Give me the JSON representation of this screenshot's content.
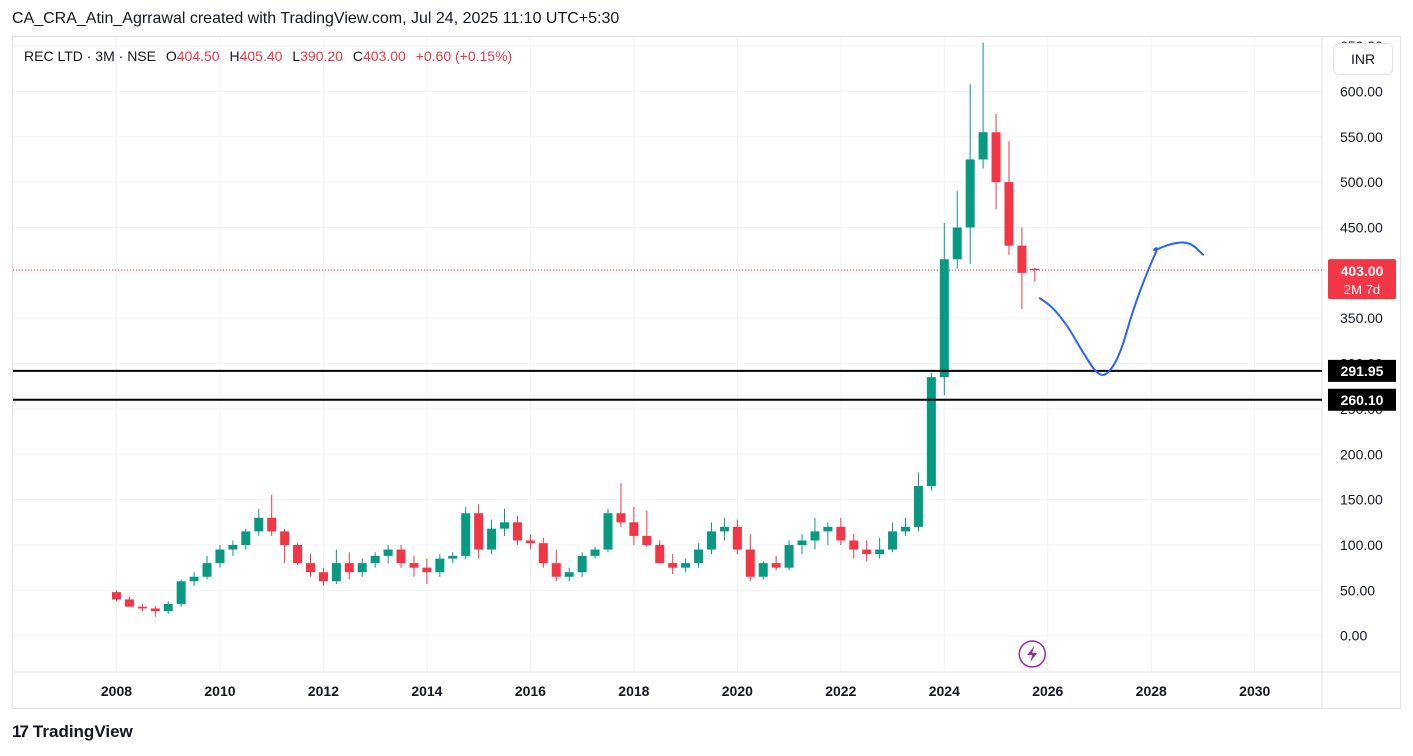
{
  "caption": "CA_CRA_Atin_Agrrawal created with TradingView.com, Jul 24, 2025 11:10 UTC+5:30",
  "legend": {
    "symbol": "REC LTD · 3M · NSE",
    "o_label": "O",
    "o": "404.50",
    "h_label": "H",
    "h": "405.40",
    "l_label": "L",
    "l": "390.20",
    "c_label": "C",
    "c": "403.00",
    "change": "+0.60 (+0.15%)"
  },
  "currency": "INR",
  "price_badge": {
    "price": "403.00",
    "countdown": "2M 7d"
  },
  "footer": {
    "brand": "TradingView",
    "logo_mark": "17"
  },
  "colors": {
    "up": "#089981",
    "down": "#f23645",
    "drawing": "#2962ff",
    "event": "#9c27b0"
  },
  "chart_data": {
    "type": "candlestick",
    "interval": "3M",
    "y_axis": {
      "ticks": [
        "0.00",
        "50.00",
        "100.00",
        "150.00",
        "200.00",
        "250.00",
        "300.00",
        "350.00",
        "400.00",
        "450.00",
        "500.00",
        "550.00",
        "600.00",
        "650.00"
      ],
      "ylim": [
        -40,
        660
      ]
    },
    "x_axis": {
      "ticks": [
        "2008",
        "2010",
        "2012",
        "2014",
        "2016",
        "2018",
        "2020",
        "2022",
        "2024",
        "2026",
        "2028",
        "2030"
      ],
      "xlim": [
        2006.0,
        2031.3
      ]
    },
    "horizontal_lines": [
      {
        "value": 291.95,
        "label": "291.95"
      },
      {
        "value": 260.1,
        "label": "260.10"
      }
    ],
    "current_price": 403.0,
    "candles": [
      {
        "t": 2008.0,
        "o": 48,
        "h": 50,
        "l": 38,
        "c": 40
      },
      {
        "t": 2008.25,
        "o": 40,
        "h": 43,
        "l": 32,
        "c": 32
      },
      {
        "t": 2008.5,
        "o": 32,
        "h": 35,
        "l": 27,
        "c": 30
      },
      {
        "t": 2008.75,
        "o": 30,
        "h": 33,
        "l": 21,
        "c": 27
      },
      {
        "t": 2009.0,
        "o": 27,
        "h": 38,
        "l": 24,
        "c": 35
      },
      {
        "t": 2009.25,
        "o": 35,
        "h": 62,
        "l": 32,
        "c": 60
      },
      {
        "t": 2009.5,
        "o": 60,
        "h": 70,
        "l": 55,
        "c": 65
      },
      {
        "t": 2009.75,
        "o": 65,
        "h": 88,
        "l": 62,
        "c": 80
      },
      {
        "t": 2010.0,
        "o": 80,
        "h": 100,
        "l": 75,
        "c": 95
      },
      {
        "t": 2010.25,
        "o": 95,
        "h": 105,
        "l": 88,
        "c": 100
      },
      {
        "t": 2010.5,
        "o": 100,
        "h": 118,
        "l": 95,
        "c": 115
      },
      {
        "t": 2010.75,
        "o": 115,
        "h": 140,
        "l": 110,
        "c": 130
      },
      {
        "t": 2011.0,
        "o": 130,
        "h": 155,
        "l": 110,
        "c": 115
      },
      {
        "t": 2011.25,
        "o": 115,
        "h": 118,
        "l": 80,
        "c": 100
      },
      {
        "t": 2011.5,
        "o": 100,
        "h": 102,
        "l": 78,
        "c": 80
      },
      {
        "t": 2011.75,
        "o": 80,
        "h": 90,
        "l": 65,
        "c": 70
      },
      {
        "t": 2012.0,
        "o": 70,
        "h": 75,
        "l": 55,
        "c": 60
      },
      {
        "t": 2012.25,
        "o": 60,
        "h": 95,
        "l": 57,
        "c": 80
      },
      {
        "t": 2012.5,
        "o": 80,
        "h": 92,
        "l": 62,
        "c": 70
      },
      {
        "t": 2012.75,
        "o": 70,
        "h": 85,
        "l": 65,
        "c": 80
      },
      {
        "t": 2013.0,
        "o": 80,
        "h": 92,
        "l": 75,
        "c": 88
      },
      {
        "t": 2013.25,
        "o": 88,
        "h": 100,
        "l": 80,
        "c": 95
      },
      {
        "t": 2013.5,
        "o": 95,
        "h": 100,
        "l": 75,
        "c": 80
      },
      {
        "t": 2013.75,
        "o": 80,
        "h": 88,
        "l": 65,
        "c": 75
      },
      {
        "t": 2014.0,
        "o": 75,
        "h": 85,
        "l": 57,
        "c": 70
      },
      {
        "t": 2014.25,
        "o": 70,
        "h": 90,
        "l": 65,
        "c": 85
      },
      {
        "t": 2014.5,
        "o": 85,
        "h": 92,
        "l": 80,
        "c": 88
      },
      {
        "t": 2014.75,
        "o": 88,
        "h": 142,
        "l": 84,
        "c": 135
      },
      {
        "t": 2015.0,
        "o": 135,
        "h": 145,
        "l": 85,
        "c": 95
      },
      {
        "t": 2015.25,
        "o": 95,
        "h": 128,
        "l": 90,
        "c": 118
      },
      {
        "t": 2015.5,
        "o": 118,
        "h": 140,
        "l": 110,
        "c": 125
      },
      {
        "t": 2015.75,
        "o": 125,
        "h": 132,
        "l": 100,
        "c": 105
      },
      {
        "t": 2016.0,
        "o": 105,
        "h": 112,
        "l": 95,
        "c": 102
      },
      {
        "t": 2016.25,
        "o": 102,
        "h": 108,
        "l": 75,
        "c": 80
      },
      {
        "t": 2016.5,
        "o": 80,
        "h": 95,
        "l": 60,
        "c": 65
      },
      {
        "t": 2016.75,
        "o": 65,
        "h": 75,
        "l": 60,
        "c": 70
      },
      {
        "t": 2017.0,
        "o": 70,
        "h": 92,
        "l": 65,
        "c": 88
      },
      {
        "t": 2017.25,
        "o": 88,
        "h": 98,
        "l": 85,
        "c": 95
      },
      {
        "t": 2017.5,
        "o": 95,
        "h": 140,
        "l": 92,
        "c": 135
      },
      {
        "t": 2017.75,
        "o": 135,
        "h": 168,
        "l": 120,
        "c": 125
      },
      {
        "t": 2018.0,
        "o": 125,
        "h": 142,
        "l": 100,
        "c": 110
      },
      {
        "t": 2018.25,
        "o": 110,
        "h": 138,
        "l": 98,
        "c": 100
      },
      {
        "t": 2018.5,
        "o": 100,
        "h": 105,
        "l": 80,
        "c": 80
      },
      {
        "t": 2018.75,
        "o": 80,
        "h": 90,
        "l": 68,
        "c": 75
      },
      {
        "t": 2019.0,
        "o": 75,
        "h": 85,
        "l": 70,
        "c": 80
      },
      {
        "t": 2019.25,
        "o": 80,
        "h": 102,
        "l": 75,
        "c": 95
      },
      {
        "t": 2019.5,
        "o": 95,
        "h": 125,
        "l": 90,
        "c": 115
      },
      {
        "t": 2019.75,
        "o": 115,
        "h": 130,
        "l": 105,
        "c": 120
      },
      {
        "t": 2020.0,
        "o": 120,
        "h": 128,
        "l": 90,
        "c": 95
      },
      {
        "t": 2020.25,
        "o": 95,
        "h": 112,
        "l": 60,
        "c": 65
      },
      {
        "t": 2020.5,
        "o": 65,
        "h": 82,
        "l": 62,
        "c": 80
      },
      {
        "t": 2020.75,
        "o": 80,
        "h": 88,
        "l": 72,
        "c": 75
      },
      {
        "t": 2021.0,
        "o": 75,
        "h": 105,
        "l": 72,
        "c": 100
      },
      {
        "t": 2021.25,
        "o": 100,
        "h": 112,
        "l": 90,
        "c": 105
      },
      {
        "t": 2021.5,
        "o": 105,
        "h": 130,
        "l": 95,
        "c": 115
      },
      {
        "t": 2021.75,
        "o": 115,
        "h": 125,
        "l": 100,
        "c": 120
      },
      {
        "t": 2022.0,
        "o": 120,
        "h": 130,
        "l": 100,
        "c": 105
      },
      {
        "t": 2022.25,
        "o": 105,
        "h": 112,
        "l": 85,
        "c": 95
      },
      {
        "t": 2022.5,
        "o": 95,
        "h": 105,
        "l": 82,
        "c": 90
      },
      {
        "t": 2022.75,
        "o": 90,
        "h": 108,
        "l": 85,
        "c": 95
      },
      {
        "t": 2023.0,
        "o": 95,
        "h": 125,
        "l": 92,
        "c": 115
      },
      {
        "t": 2023.25,
        "o": 115,
        "h": 130,
        "l": 110,
        "c": 120
      },
      {
        "t": 2023.5,
        "o": 120,
        "h": 180,
        "l": 115,
        "c": 165
      },
      {
        "t": 2023.75,
        "o": 165,
        "h": 290,
        "l": 160,
        "c": 285
      },
      {
        "t": 2024.0,
        "o": 285,
        "h": 455,
        "l": 265,
        "c": 415
      },
      {
        "t": 2024.25,
        "o": 415,
        "h": 490,
        "l": 405,
        "c": 450
      },
      {
        "t": 2024.5,
        "o": 450,
        "h": 608,
        "l": 410,
        "c": 525
      },
      {
        "t": 2024.75,
        "o": 525,
        "h": 654,
        "l": 515,
        "c": 555
      },
      {
        "t": 2025.0,
        "o": 555,
        "h": 575,
        "l": 470,
        "c": 500
      },
      {
        "t": 2025.25,
        "o": 500,
        "h": 545,
        "l": 420,
        "c": 430
      },
      {
        "t": 2025.5,
        "o": 430,
        "h": 450,
        "l": 360,
        "c": 400
      },
      {
        "t": 2025.75,
        "o": 404.5,
        "h": 405.4,
        "l": 390.2,
        "c": 403.0
      }
    ],
    "drawing_path": [
      [
        2025.85,
        372
      ],
      [
        2026.1,
        362
      ],
      [
        2026.4,
        340
      ],
      [
        2026.65,
        315
      ],
      [
        2026.95,
        288
      ],
      [
        2027.15,
        287
      ],
      [
        2027.4,
        310
      ],
      [
        2027.65,
        360
      ],
      [
        2027.95,
        405
      ],
      [
        2028.15,
        430
      ],
      [
        2028.0,
        423
      ],
      [
        2028.4,
        433
      ],
      [
        2028.75,
        434
      ],
      [
        2029.0,
        420
      ]
    ],
    "event_marker": {
      "t": 2025.7,
      "icon": "lightning-icon"
    }
  }
}
